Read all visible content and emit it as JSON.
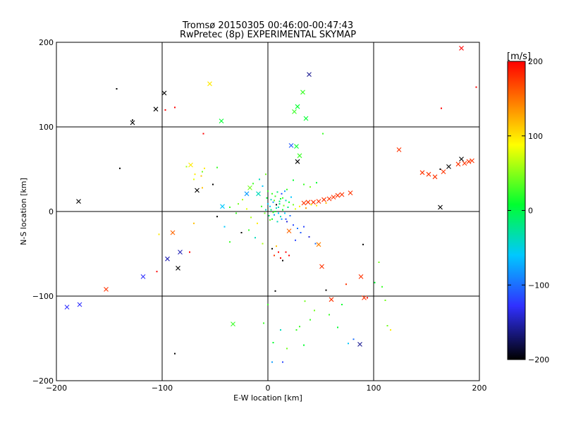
{
  "chart_data": {
    "type": "scatter",
    "title": "Tromsø 20150305 00:46:00-00:47:43",
    "subtitle": "RwPretec (8p) EXPERIMENTAL SKYMAP",
    "xlabel": "E-W location [km]",
    "ylabel": "N-S location [km]",
    "xlim": [
      -200,
      200
    ],
    "ylim": [
      -200,
      200
    ],
    "xticks": [
      -200,
      -100,
      0,
      100,
      200
    ],
    "yticks": [
      -200,
      -100,
      0,
      100,
      200
    ],
    "grid": true,
    "colorbar": {
      "label": "[m/s]",
      "min": -200,
      "max": 200,
      "ticks": [
        200,
        100,
        0,
        -100,
        -200
      ]
    },
    "series": [
      {
        "marker": "x",
        "points": [
          {
            "x": 39,
            "y": 162,
            "v": -160
          },
          {
            "x": -98,
            "y": 140,
            "v": -200
          },
          {
            "x": -106,
            "y": 121,
            "v": -200
          },
          {
            "x": -128,
            "y": 105,
            "v": -200
          },
          {
            "x": -55,
            "y": 151,
            "v": 100
          },
          {
            "x": 33,
            "y": 141,
            "v": 20
          },
          {
            "x": -44,
            "y": 107,
            "v": 0
          },
          {
            "x": 25,
            "y": 118,
            "v": 20
          },
          {
            "x": 28,
            "y": 124,
            "v": 0
          },
          {
            "x": 36,
            "y": 110,
            "v": 0
          },
          {
            "x": 183,
            "y": 193,
            "v": 200
          },
          {
            "x": 22,
            "y": 78,
            "v": -110
          },
          {
            "x": 27,
            "y": 77,
            "v": 0
          },
          {
            "x": 30,
            "y": 66,
            "v": 20
          },
          {
            "x": 28,
            "y": 59,
            "v": -200
          },
          {
            "x": -73,
            "y": 55,
            "v": 100
          },
          {
            "x": -67,
            "y": 25,
            "v": -200
          },
          {
            "x": -179,
            "y": 12,
            "v": -200
          },
          {
            "x": -43,
            "y": 6,
            "v": -60
          },
          {
            "x": -20,
            "y": 21,
            "v": -80
          },
          {
            "x": -17,
            "y": 28,
            "v": 40
          },
          {
            "x": -9,
            "y": 21,
            "v": -40
          },
          {
            "x": 124,
            "y": 73,
            "v": 180
          },
          {
            "x": 146,
            "y": 46,
            "v": 180
          },
          {
            "x": 152,
            "y": 44,
            "v": 180
          },
          {
            "x": 158,
            "y": 41,
            "v": 180
          },
          {
            "x": 166,
            "y": 47,
            "v": 180
          },
          {
            "x": 171,
            "y": 53,
            "v": -200
          },
          {
            "x": 180,
            "y": 56,
            "v": 180
          },
          {
            "x": 183,
            "y": 62,
            "v": -200
          },
          {
            "x": 186,
            "y": 57,
            "v": 180
          },
          {
            "x": 190,
            "y": 59,
            "v": 180
          },
          {
            "x": 193,
            "y": 60,
            "v": 180
          },
          {
            "x": 163,
            "y": 5,
            "v": -200
          },
          {
            "x": 34,
            "y": 10,
            "v": 180
          },
          {
            "x": 38,
            "y": 11,
            "v": 180
          },
          {
            "x": 43,
            "y": 11,
            "v": 180
          },
          {
            "x": 48,
            "y": 12,
            "v": 180
          },
          {
            "x": 53,
            "y": 14,
            "v": 180
          },
          {
            "x": 58,
            "y": 15,
            "v": 180
          },
          {
            "x": 62,
            "y": 17,
            "v": 180
          },
          {
            "x": 66,
            "y": 19,
            "v": 180
          },
          {
            "x": 70,
            "y": 20,
            "v": 180
          },
          {
            "x": 78,
            "y": 22,
            "v": 180
          },
          {
            "x": 20,
            "y": -23,
            "v": 160
          },
          {
            "x": 48,
            "y": -39,
            "v": 150
          },
          {
            "x": 51,
            "y": -65,
            "v": 180
          },
          {
            "x": -90,
            "y": -25,
            "v": 160
          },
          {
            "x": -83,
            "y": -48,
            "v": -150
          },
          {
            "x": -95,
            "y": -56,
            "v": -150
          },
          {
            "x": -85,
            "y": -67,
            "v": -200
          },
          {
            "x": -118,
            "y": -77,
            "v": -130
          },
          {
            "x": -153,
            "y": -92,
            "v": 180
          },
          {
            "x": -178,
            "y": -110,
            "v": -130
          },
          {
            "x": -190,
            "y": -113,
            "v": -130
          },
          {
            "x": -33,
            "y": -133,
            "v": 20
          },
          {
            "x": 60,
            "y": -104,
            "v": 180
          },
          {
            "x": 88,
            "y": -77,
            "v": 180
          },
          {
            "x": 91,
            "y": -102,
            "v": 180
          },
          {
            "x": 87,
            "y": -157,
            "v": -160
          }
        ]
      },
      {
        "marker": "dot",
        "points": [
          {
            "x": -143,
            "y": 145,
            "v": -200
          },
          {
            "x": -128,
            "y": 108,
            "v": -200
          },
          {
            "x": -88,
            "y": 123,
            "v": 200
          },
          {
            "x": -97,
            "y": 120,
            "v": 200
          },
          {
            "x": -140,
            "y": 51,
            "v": -200
          },
          {
            "x": -61,
            "y": 92,
            "v": 200
          },
          {
            "x": -52,
            "y": 32,
            "v": -200
          },
          {
            "x": -48,
            "y": 52,
            "v": 20
          },
          {
            "x": -60,
            "y": 51,
            "v": 100
          },
          {
            "x": -62,
            "y": 47,
            "v": 40
          },
          {
            "x": -69,
            "y": 44,
            "v": 100
          },
          {
            "x": -77,
            "y": 53,
            "v": 60
          },
          {
            "x": -70,
            "y": 38,
            "v": 80
          },
          {
            "x": -63,
            "y": 42,
            "v": 120
          },
          {
            "x": -48,
            "y": -6,
            "v": -200
          },
          {
            "x": -41,
            "y": -18,
            "v": -60
          },
          {
            "x": -36,
            "y": -36,
            "v": 20
          },
          {
            "x": -25,
            "y": -25,
            "v": -200
          },
          {
            "x": -103,
            "y": -27,
            "v": 100
          },
          {
            "x": -105,
            "y": -71,
            "v": 200
          },
          {
            "x": -74,
            "y": -48,
            "v": 200
          },
          {
            "x": -88,
            "y": -168,
            "v": -200
          },
          {
            "x": 164,
            "y": 122,
            "v": 200
          },
          {
            "x": 197,
            "y": 147,
            "v": 200
          },
          {
            "x": 52,
            "y": 92,
            "v": 20
          },
          {
            "x": 163,
            "y": 50,
            "v": -200
          },
          {
            "x": 90,
            "y": -39,
            "v": -200
          },
          {
            "x": 105,
            "y": -60,
            "v": 40
          },
          {
            "x": 108,
            "y": -89,
            "v": 20
          },
          {
            "x": 101,
            "y": -84,
            "v": 0
          },
          {
            "x": 94,
            "y": -102,
            "v": 200
          },
          {
            "x": 111,
            "y": -105,
            "v": 40
          },
          {
            "x": 113,
            "y": -135,
            "v": 40
          },
          {
            "x": 116,
            "y": -140,
            "v": 100
          },
          {
            "x": 76,
            "y": -156,
            "v": -60
          },
          {
            "x": 81,
            "y": -151,
            "v": -100
          },
          {
            "x": 55,
            "y": -93,
            "v": -200
          },
          {
            "x": 44,
            "y": -117,
            "v": 40
          },
          {
            "x": 40,
            "y": -128,
            "v": 20
          },
          {
            "x": 35,
            "y": -106,
            "v": 40
          },
          {
            "x": 30,
            "y": -136,
            "v": 20
          },
          {
            "x": 14,
            "y": -178,
            "v": -120
          },
          {
            "x": 4,
            "y": -178,
            "v": -80
          },
          {
            "x": 7,
            "y": -94,
            "v": -200
          },
          {
            "x": 0,
            "y": -110,
            "v": 20
          },
          {
            "x": -4,
            "y": -132,
            "v": 20
          },
          {
            "x": 5,
            "y": -155,
            "v": 0
          },
          {
            "x": 12,
            "y": -140,
            "v": -40
          },
          {
            "x": 27,
            "y": -140,
            "v": 20
          },
          {
            "x": 18,
            "y": -162,
            "v": 40
          },
          {
            "x": 34,
            "y": -158,
            "v": 0
          },
          {
            "x": 58,
            "y": -122,
            "v": 20
          },
          {
            "x": 66,
            "y": -137,
            "v": 0
          },
          {
            "x": 70,
            "y": -110,
            "v": 0
          },
          {
            "x": 74,
            "y": -86,
            "v": 180
          },
          {
            "x": 10,
            "y": -48,
            "v": 200
          },
          {
            "x": 6,
            "y": -52,
            "v": 180
          },
          {
            "x": 4,
            "y": -44,
            "v": -200
          },
          {
            "x": 12,
            "y": -55,
            "v": 200
          },
          {
            "x": 17,
            "y": -48,
            "v": 200
          },
          {
            "x": 14,
            "y": -58,
            "v": -200
          },
          {
            "x": 20,
            "y": -52,
            "v": 200
          },
          {
            "x": 8,
            "y": -41,
            "v": 120
          },
          {
            "x": -5,
            "y": -38,
            "v": 60
          },
          {
            "x": -12,
            "y": -31,
            "v": -40
          },
          {
            "x": -18,
            "y": -22,
            "v": 20
          },
          {
            "x": 26,
            "y": -34,
            "v": -120
          },
          {
            "x": 31,
            "y": -25,
            "v": -110
          },
          {
            "x": 24,
            "y": -16,
            "v": -120
          },
          {
            "x": 18,
            "y": -12,
            "v": -140
          },
          {
            "x": 28,
            "y": -20,
            "v": -100
          },
          {
            "x": 34,
            "y": -18,
            "v": -120
          },
          {
            "x": 39,
            "y": -30,
            "v": -140
          },
          {
            "x": 45,
            "y": -38,
            "v": -100
          },
          {
            "x": -2,
            "y": 44,
            "v": 40
          },
          {
            "x": -8,
            "y": 38,
            "v": -40
          },
          {
            "x": -14,
            "y": 33,
            "v": 20
          },
          {
            "x": -5,
            "y": 30,
            "v": -60
          },
          {
            "x": -24,
            "y": 14,
            "v": 60
          },
          {
            "x": -28,
            "y": 9,
            "v": 40
          },
          {
            "x": -20,
            "y": 3,
            "v": 80
          },
          {
            "x": -30,
            "y": -2,
            "v": 20
          },
          {
            "x": -36,
            "y": 5,
            "v": 20
          },
          {
            "x": -16,
            "y": -7,
            "v": 60
          },
          {
            "x": -10,
            "y": -14,
            "v": 100
          },
          {
            "x": 2,
            "y": -10,
            "v": 40
          },
          {
            "x": -2,
            "y": 2,
            "v": -40
          },
          {
            "x": 2,
            "y": 6,
            "v": -60
          },
          {
            "x": 5,
            "y": 11,
            "v": -80
          },
          {
            "x": 8,
            "y": 4,
            "v": -40
          },
          {
            "x": 11,
            "y": 9,
            "v": -20
          },
          {
            "x": 14,
            "y": 2,
            "v": 0
          },
          {
            "x": 6,
            "y": -4,
            "v": -80
          },
          {
            "x": 10,
            "y": -2,
            "v": -60
          },
          {
            "x": 3,
            "y": 14,
            "v": -40
          },
          {
            "x": 7,
            "y": 18,
            "v": 20
          },
          {
            "x": 12,
            "y": 15,
            "v": 0
          },
          {
            "x": 15,
            "y": 7,
            "v": 40
          },
          {
            "x": 17,
            "y": 13,
            "v": -40
          },
          {
            "x": 9,
            "y": 23,
            "v": -20
          },
          {
            "x": 4,
            "y": 21,
            "v": 20
          },
          {
            "x": 13,
            "y": 21,
            "v": -120
          },
          {
            "x": 16,
            "y": 24,
            "v": -80
          },
          {
            "x": 0,
            "y": 9,
            "v": -60
          },
          {
            "x": -1,
            "y": 16,
            "v": 0
          },
          {
            "x": 1,
            "y": -5,
            "v": -20
          },
          {
            "x": 5,
            "y": -1,
            "v": 20
          },
          {
            "x": 12,
            "y": -6,
            "v": -40
          },
          {
            "x": 16,
            "y": -2,
            "v": -60
          },
          {
            "x": 19,
            "y": 5,
            "v": -20
          },
          {
            "x": 8,
            "y": 8,
            "v": -200
          },
          {
            "x": 11,
            "y": 12,
            "v": -20
          },
          {
            "x": 14,
            "y": 16,
            "v": 20
          },
          {
            "x": 6,
            "y": 13,
            "v": 40
          },
          {
            "x": 3,
            "y": 2,
            "v": -20
          },
          {
            "x": 7,
            "y": 0,
            "v": 0
          },
          {
            "x": 10,
            "y": 5,
            "v": -40
          },
          {
            "x": 13,
            "y": -9,
            "v": -80
          },
          {
            "x": 9,
            "y": -12,
            "v": -40
          },
          {
            "x": 4,
            "y": -9,
            "v": 0
          },
          {
            "x": 17,
            "y": -9,
            "v": -120
          },
          {
            "x": 21,
            "y": -5,
            "v": -100
          },
          {
            "x": 20,
            "y": 11,
            "v": 0
          },
          {
            "x": 22,
            "y": 17,
            "v": -60
          },
          {
            "x": 24,
            "y": 8,
            "v": 40
          },
          {
            "x": 26,
            "y": 3,
            "v": 80
          },
          {
            "x": 18,
            "y": 26,
            "v": 20
          },
          {
            "x": -3,
            "y": -2,
            "v": 40
          },
          {
            "x": -6,
            "y": 6,
            "v": 20
          },
          {
            "x": 0,
            "y": 24,
            "v": 20
          },
          {
            "x": 30,
            "y": 6,
            "v": 100
          },
          {
            "x": 36,
            "y": 4,
            "v": 140
          },
          {
            "x": 41,
            "y": 8,
            "v": 80
          },
          {
            "x": 46,
            "y": 7,
            "v": 100
          },
          {
            "x": 55,
            "y": 10,
            "v": 120
          },
          {
            "x": 34,
            "y": 32,
            "v": 20
          },
          {
            "x": 40,
            "y": 29,
            "v": 40
          },
          {
            "x": 46,
            "y": 34,
            "v": 0
          },
          {
            "x": 24,
            "y": 37,
            "v": 0
          },
          {
            "x": -62,
            "y": 28,
            "v": 120
          },
          {
            "x": -70,
            "y": -14,
            "v": 120
          }
        ]
      }
    ]
  },
  "colors": {
    "background": "#ffffff",
    "axes": "#000000",
    "grid": "#000000",
    "colormap_stops": [
      "#000000",
      "#3030ff",
      "#00c8ff",
      "#00ff30",
      "#ffff00",
      "#ff8000",
      "#ff0000"
    ]
  }
}
